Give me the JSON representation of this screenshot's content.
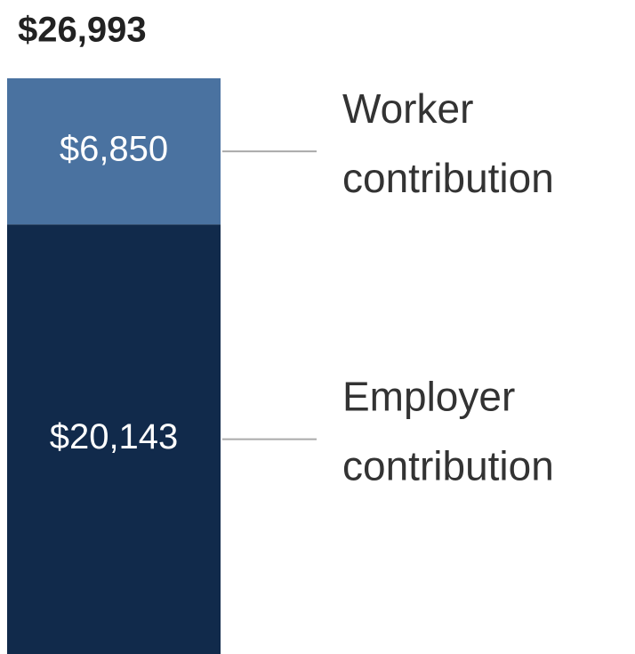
{
  "chart_data": {
    "type": "stacked_bar",
    "total": 26993,
    "total_label": "$26,993",
    "series": [
      {
        "name": "Employer contribution",
        "color": "#112a4b",
        "values": [
          20143
        ],
        "value_labels": [
          "$20,143"
        ]
      },
      {
        "name": "Worker contribution",
        "color": "#4a72a0",
        "values": [
          6850
        ],
        "value_labels": [
          "$6,850"
        ]
      }
    ]
  }
}
